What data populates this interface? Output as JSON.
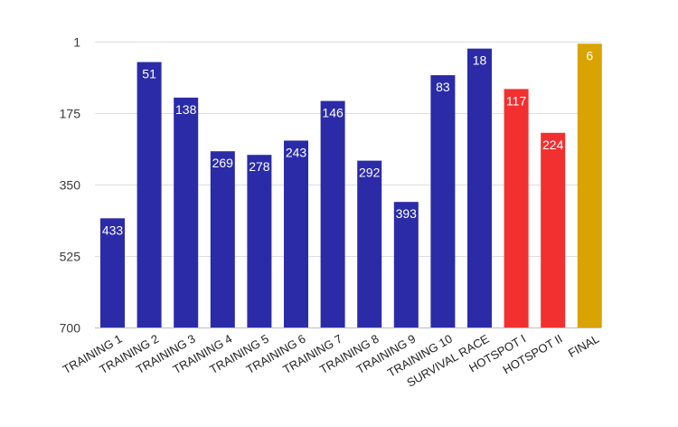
{
  "chart_data": {
    "type": "bar",
    "y_axis": {
      "reversed": true,
      "range": [
        1,
        700
      ],
      "ticks": [
        1,
        175,
        350,
        525,
        700
      ]
    },
    "grid": true,
    "legend": "none",
    "categories": [
      "TRAINING 1",
      "TRAINING 2",
      "TRAINING 3",
      "TRAINING 4",
      "TRAINING 5",
      "TRAINING 6",
      "TRAINING 7",
      "TRAINING 8",
      "TRAINING 9",
      "TRAINING 10",
      "SURVIVAL RACE",
      "HOTSPOT I",
      "HOTSPOT II",
      "FINAL"
    ],
    "values": [
      433,
      51,
      138,
      269,
      278,
      243,
      146,
      292,
      393,
      83,
      18,
      117,
      224,
      6
    ],
    "labels": [
      "433",
      "51",
      "138",
      "269",
      "278",
      "243",
      "146",
      "292",
      "393",
      "83",
      "18",
      "117",
      "224",
      "6"
    ],
    "colors": {
      "training": "#2b2ba8",
      "hotspot": "#f23030",
      "final": "#d9a300",
      "label_outside_training": "#2b2b6e",
      "label_outside_hotspot": "#c0282a",
      "label_inside": "#ffffff"
    },
    "bar_color_groups": [
      "training",
      "training",
      "training",
      "training",
      "training",
      "training",
      "training",
      "training",
      "training",
      "training",
      "training",
      "hotspot",
      "hotspot",
      "final"
    ]
  }
}
